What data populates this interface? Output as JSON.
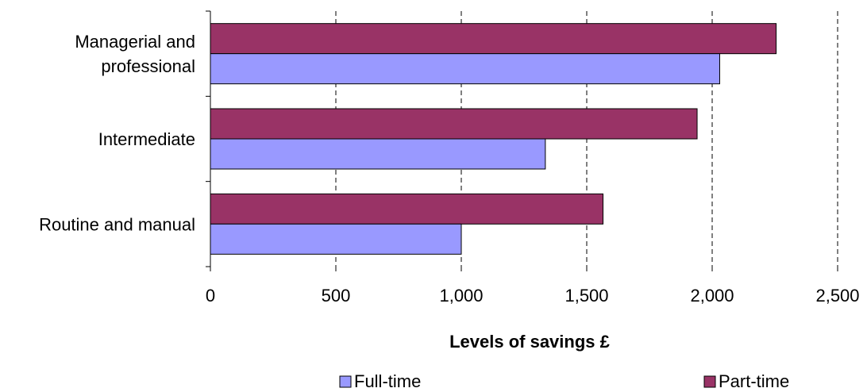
{
  "chart_data": {
    "type": "bar",
    "orientation": "horizontal",
    "categories": [
      "Managerial and professional",
      "Intermediate",
      "Routine and manual"
    ],
    "category_label_lines": [
      [
        "Managerial and",
        "professional"
      ],
      [
        "Intermediate"
      ],
      [
        "Routine and manual"
      ]
    ],
    "series": [
      {
        "name": "Part-time",
        "values": [
          2255,
          1940,
          1565
        ],
        "color": "#993366"
      },
      {
        "name": "Full-time",
        "values": [
          2030,
          1335,
          1000
        ],
        "color": "#9999ff"
      }
    ],
    "xlabel": "Levels of savings £",
    "ylabel": "",
    "xlim": [
      0,
      2500
    ],
    "x_ticks": [
      "0",
      "500",
      "1,000",
      "1,500",
      "2,000",
      "2,500"
    ],
    "grid": "vertical dashed",
    "legend": {
      "position": "bottom",
      "entries": [
        {
          "label": "Full-time",
          "color": "#9999ff"
        },
        {
          "label": "Part-time",
          "color": "#993366"
        }
      ]
    }
  }
}
